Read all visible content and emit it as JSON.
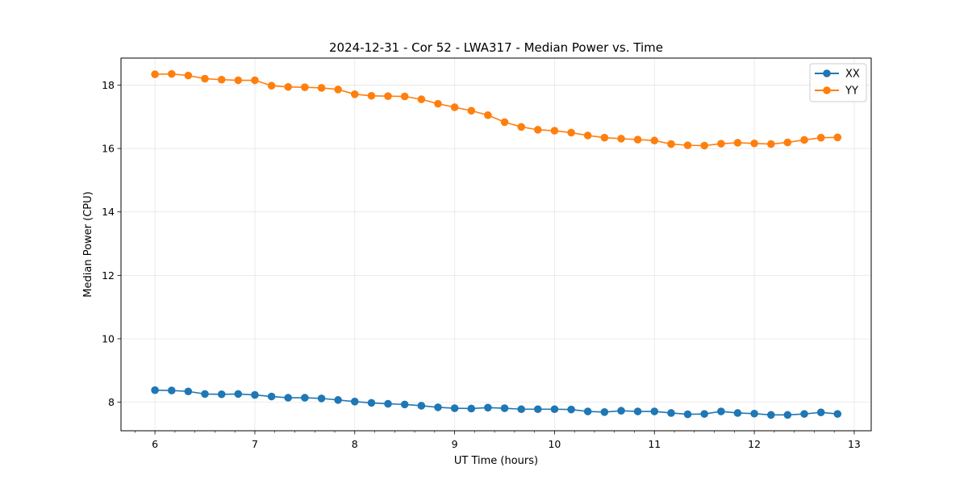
{
  "chart_data": {
    "type": "line",
    "title": "2024-12-31 - Cor 52 - LWA317 - Median Power vs. Time",
    "xlabel": "UT Time (hours)",
    "ylabel": "Median Power (CPU)",
    "xlim": [
      5.66,
      13.17
    ],
    "ylim": [
      7.1,
      18.85
    ],
    "xticks": [
      6,
      7,
      8,
      9,
      10,
      11,
      12,
      13
    ],
    "xtick_labels": [
      "6",
      "7",
      "8",
      "9",
      "10",
      "11",
      "12",
      "13"
    ],
    "xminor_step": 0.2,
    "yticks": [
      8,
      10,
      12,
      14,
      16,
      18
    ],
    "ytick_labels": [
      "8",
      "10",
      "12",
      "14",
      "16",
      "18"
    ],
    "grid": true,
    "legend_position": "top-right",
    "x": [
      6.0,
      6.167,
      6.333,
      6.5,
      6.667,
      6.833,
      7.0,
      7.167,
      7.333,
      7.5,
      7.667,
      7.833,
      8.0,
      8.167,
      8.333,
      8.5,
      8.667,
      8.833,
      9.0,
      9.167,
      9.333,
      9.5,
      9.667,
      9.833,
      10.0,
      10.167,
      10.333,
      10.5,
      10.667,
      10.833,
      11.0,
      11.167,
      11.333,
      11.5,
      11.667,
      11.833,
      12.0,
      12.167,
      12.333,
      12.5,
      12.667,
      12.833
    ],
    "series": [
      {
        "name": "XX",
        "color": "#1f77b4",
        "values": [
          8.38,
          8.37,
          8.34,
          8.26,
          8.25,
          8.26,
          8.23,
          8.18,
          8.14,
          8.14,
          8.12,
          8.07,
          8.02,
          7.98,
          7.95,
          7.93,
          7.89,
          7.84,
          7.81,
          7.8,
          7.83,
          7.81,
          7.78,
          7.78,
          7.78,
          7.77,
          7.71,
          7.69,
          7.73,
          7.71,
          7.71,
          7.66,
          7.62,
          7.63,
          7.71,
          7.66,
          7.64,
          7.6,
          7.6,
          7.63,
          7.68,
          7.63
        ]
      },
      {
        "name": "YY",
        "color": "#ff7f0e",
        "values": [
          18.34,
          18.35,
          18.3,
          18.2,
          18.17,
          18.15,
          18.15,
          17.98,
          17.94,
          17.93,
          17.91,
          17.86,
          17.71,
          17.66,
          17.65,
          17.64,
          17.55,
          17.41,
          17.3,
          17.19,
          17.05,
          16.83,
          16.68,
          16.59,
          16.56,
          16.5,
          16.41,
          16.34,
          16.31,
          16.28,
          16.25,
          16.14,
          16.1,
          16.09,
          16.15,
          16.18,
          16.16,
          16.14,
          16.19,
          16.27,
          16.34,
          16.35
        ]
      }
    ]
  }
}
